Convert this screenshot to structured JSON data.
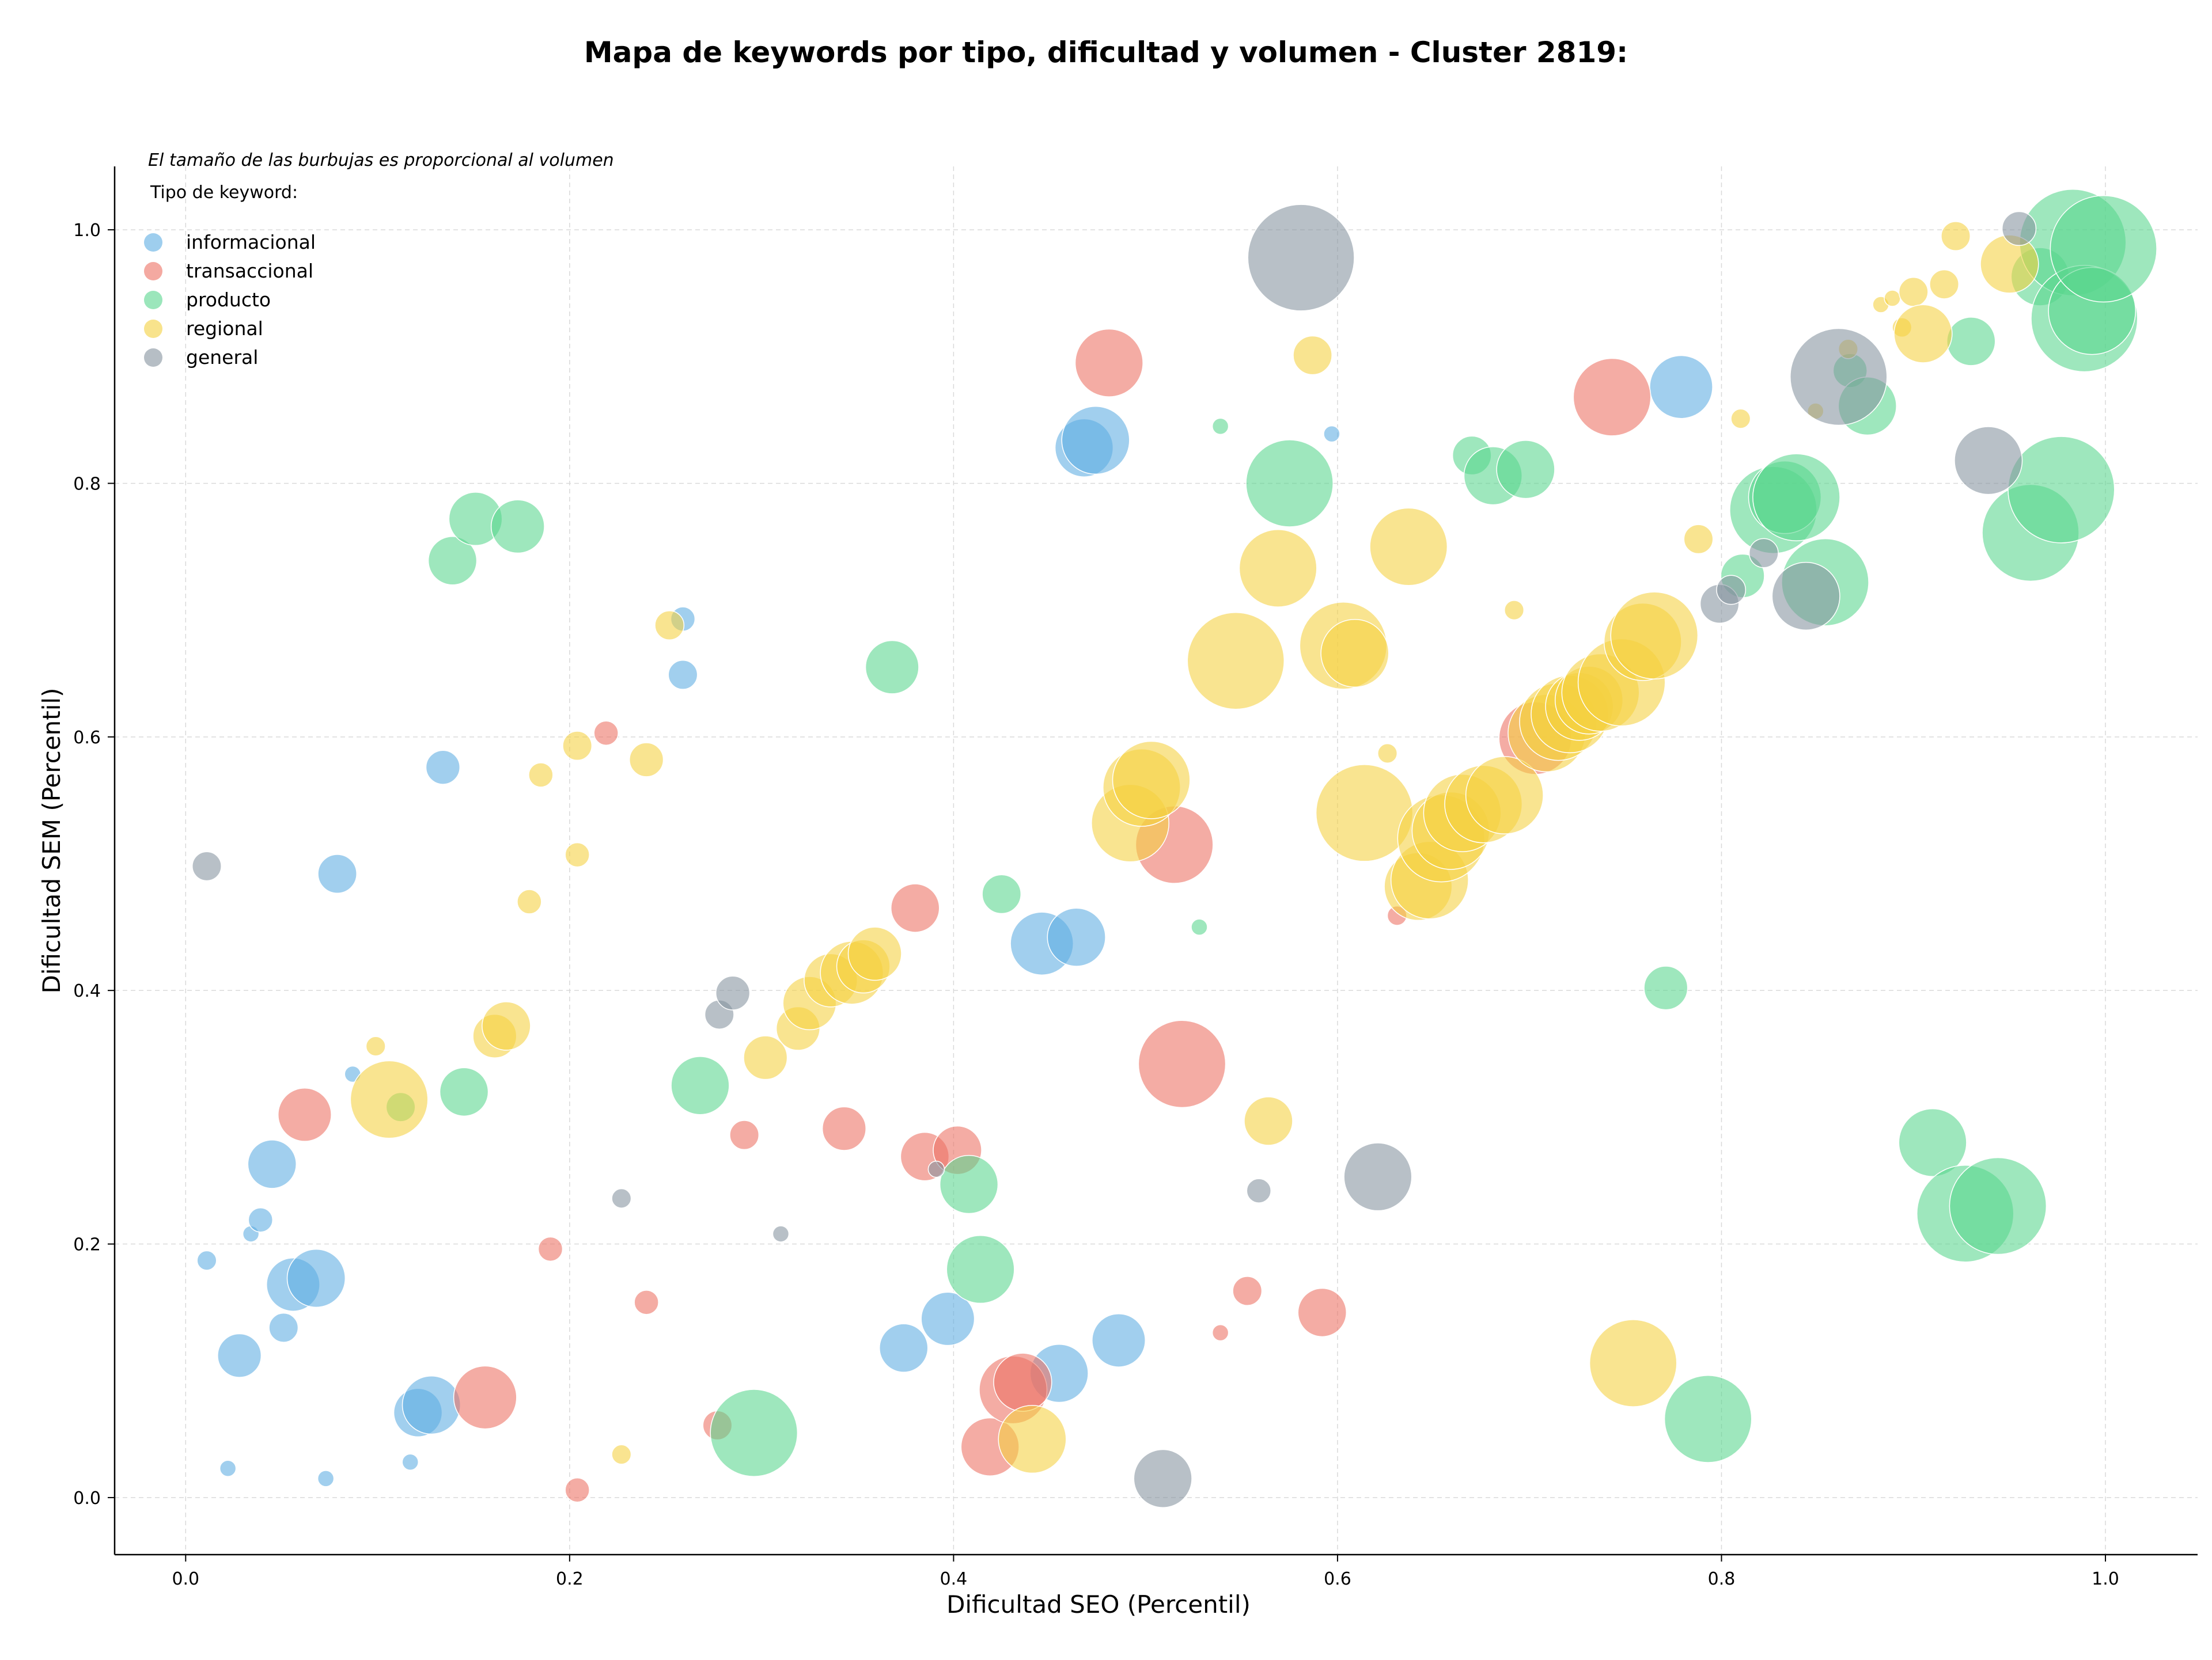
{
  "chart_data": {
    "type": "scatter",
    "title": "Mapa de keywords por tipo, dificultad y volumen - Cluster 2819:",
    "xlabel": "Dificultad SEO (Percentil)",
    "ylabel": "Dificultad SEM (Percentil)",
    "xlim": [
      -0.037,
      1.048
    ],
    "ylim": [
      -0.045,
      1.05
    ],
    "xticks": [
      "0.0",
      "0.2",
      "0.4",
      "0.6",
      "0.8",
      "1.0"
    ],
    "yticks": [
      "0.0",
      "0.2",
      "0.4",
      "0.6",
      "0.8",
      "1.0"
    ],
    "grid": true,
    "annotation": "El tamaño de las burbujas es proporcional al volumen",
    "legend_title": "Tipo de keyword:",
    "legend_position": "top-left",
    "series": [
      {
        "name": "informacional",
        "color": "#5dade2",
        "points": [
          {
            "x": 0.011,
            "y": 0.187,
            "v": 4
          },
          {
            "x": 0.022,
            "y": 0.023,
            "v": 2
          },
          {
            "x": 0.028,
            "y": 0.112,
            "v": 9
          },
          {
            "x": 0.034,
            "y": 0.208,
            "v": 3
          },
          {
            "x": 0.039,
            "y": 0.219,
            "v": 5
          },
          {
            "x": 0.045,
            "y": 0.263,
            "v": 10
          },
          {
            "x": 0.051,
            "y": 0.134,
            "v": 6
          },
          {
            "x": 0.056,
            "y": 0.168,
            "v": 11
          },
          {
            "x": 0.068,
            "y": 0.173,
            "v": 12
          },
          {
            "x": 0.073,
            "y": 0.015,
            "v": 2
          },
          {
            "x": 0.079,
            "y": 0.492,
            "v": 8
          },
          {
            "x": 0.087,
            "y": 0.334,
            "v": 3
          },
          {
            "x": 0.117,
            "y": 0.028,
            "v": 3
          },
          {
            "x": 0.121,
            "y": 0.067,
            "v": 10
          },
          {
            "x": 0.128,
            "y": 0.073,
            "v": 12
          },
          {
            "x": 0.134,
            "y": 0.576,
            "v": 7
          },
          {
            "x": 0.259,
            "y": 0.693,
            "v": 5
          },
          {
            "x": 0.259,
            "y": 0.649,
            "v": 6
          },
          {
            "x": 0.374,
            "y": 0.118,
            "v": 10
          },
          {
            "x": 0.397,
            "y": 0.141,
            "v": 11
          },
          {
            "x": 0.446,
            "y": 0.437,
            "v": 13
          },
          {
            "x": 0.455,
            "y": 0.098,
            "v": 12
          },
          {
            "x": 0.464,
            "y": 0.442,
            "v": 12
          },
          {
            "x": 0.468,
            "y": 0.828,
            "v": 12
          },
          {
            "x": 0.474,
            "y": 0.834,
            "v": 14
          },
          {
            "x": 0.486,
            "y": 0.124,
            "v": 11
          },
          {
            "x": 0.597,
            "y": 0.839,
            "v": 3
          },
          {
            "x": 0.779,
            "y": 0.876,
            "v": 13
          }
        ]
      },
      {
        "name": "transaccional",
        "color": "#ec7063",
        "points": [
          {
            "x": 0.062,
            "y": 0.302,
            "v": 11
          },
          {
            "x": 0.156,
            "y": 0.079,
            "v": 13
          },
          {
            "x": 0.19,
            "y": 0.196,
            "v": 5
          },
          {
            "x": 0.204,
            "y": 0.006,
            "v": 5
          },
          {
            "x": 0.219,
            "y": 0.603,
            "v": 5
          },
          {
            "x": 0.24,
            "y": 0.154,
            "v": 5
          },
          {
            "x": 0.277,
            "y": 0.057,
            "v": 6
          },
          {
            "x": 0.291,
            "y": 0.286,
            "v": 6
          },
          {
            "x": 0.343,
            "y": 0.291,
            "v": 9
          },
          {
            "x": 0.38,
            "y": 0.465,
            "v": 10
          },
          {
            "x": 0.385,
            "y": 0.269,
            "v": 10
          },
          {
            "x": 0.402,
            "y": 0.274,
            "v": 10
          },
          {
            "x": 0.419,
            "y": 0.04,
            "v": 12
          },
          {
            "x": 0.431,
            "y": 0.085,
            "v": 14
          },
          {
            "x": 0.436,
            "y": 0.091,
            "v": 12
          },
          {
            "x": 0.481,
            "y": 0.895,
            "v": 14
          },
          {
            "x": 0.515,
            "y": 0.515,
            "v": 16
          },
          {
            "x": 0.519,
            "y": 0.342,
            "v": 18
          },
          {
            "x": 0.539,
            "y": 0.13,
            "v": 3
          },
          {
            "x": 0.553,
            "y": 0.163,
            "v": 6
          },
          {
            "x": 0.592,
            "y": 0.146,
            "v": 10
          },
          {
            "x": 0.631,
            "y": 0.459,
            "v": 4
          },
          {
            "x": 0.703,
            "y": 0.599,
            "v": 15
          },
          {
            "x": 0.743,
            "y": 0.868,
            "v": 16
          }
        ]
      },
      {
        "name": "producto",
        "color": "#58d68d",
        "points": [
          {
            "x": 0.112,
            "y": 0.308,
            "v": 6
          },
          {
            "x": 0.139,
            "y": 0.739,
            "v": 10
          },
          {
            "x": 0.145,
            "y": 0.32,
            "v": 10
          },
          {
            "x": 0.151,
            "y": 0.772,
            "v": 11
          },
          {
            "x": 0.173,
            "y": 0.766,
            "v": 11
          },
          {
            "x": 0.268,
            "y": 0.325,
            "v": 12
          },
          {
            "x": 0.296,
            "y": 0.051,
            "v": 18
          },
          {
            "x": 0.368,
            "y": 0.655,
            "v": 11
          },
          {
            "x": 0.408,
            "y": 0.247,
            "v": 12
          },
          {
            "x": 0.414,
            "y": 0.18,
            "v": 14
          },
          {
            "x": 0.425,
            "y": 0.476,
            "v": 8
          },
          {
            "x": 0.528,
            "y": 0.45,
            "v": 2
          },
          {
            "x": 0.539,
            "y": 0.845,
            "v": 3
          },
          {
            "x": 0.575,
            "y": 0.8,
            "v": 18
          },
          {
            "x": 0.67,
            "y": 0.822,
            "v": 8
          },
          {
            "x": 0.681,
            "y": 0.806,
            "v": 12
          },
          {
            "x": 0.698,
            "y": 0.811,
            "v": 12
          },
          {
            "x": 0.771,
            "y": 0.402,
            "v": 9
          },
          {
            "x": 0.793,
            "y": 0.062,
            "v": 18
          },
          {
            "x": 0.811,
            "y": 0.727,
            "v": 9
          },
          {
            "x": 0.827,
            "y": 0.779,
            "v": 18
          },
          {
            "x": 0.833,
            "y": 0.789,
            "v": 15
          },
          {
            "x": 0.839,
            "y": 0.789,
            "v": 18
          },
          {
            "x": 0.854,
            "y": 0.722,
            "v": 18
          },
          {
            "x": 0.867,
            "y": 0.889,
            "v": 7
          },
          {
            "x": 0.876,
            "y": 0.861,
            "v": 12
          },
          {
            "x": 0.91,
            "y": 0.28,
            "v": 14
          },
          {
            "x": 0.927,
            "y": 0.224,
            "v": 20
          },
          {
            "x": 0.93,
            "y": 0.912,
            "v": 10
          },
          {
            "x": 0.944,
            "y": 0.23,
            "v": 20
          },
          {
            "x": 0.961,
            "y": 0.761,
            "v": 20
          },
          {
            "x": 0.966,
            "y": 0.963,
            "v": 12
          },
          {
            "x": 0.977,
            "y": 0.795,
            "v": 22
          },
          {
            "x": 0.983,
            "y": 0.99,
            "v": 22
          },
          {
            "x": 0.989,
            "y": 0.93,
            "v": 22
          },
          {
            "x": 0.993,
            "y": 0.936,
            "v": 18
          },
          {
            "x": 0.999,
            "y": 0.985,
            "v": 22
          }
        ]
      },
      {
        "name": "regional",
        "color": "#f4d03f",
        "points": [
          {
            "x": 0.099,
            "y": 0.356,
            "v": 4
          },
          {
            "x": 0.106,
            "y": 0.314,
            "v": 16
          },
          {
            "x": 0.161,
            "y": 0.364,
            "v": 9
          },
          {
            "x": 0.167,
            "y": 0.372,
            "v": 10
          },
          {
            "x": 0.179,
            "y": 0.47,
            "v": 5
          },
          {
            "x": 0.185,
            "y": 0.57,
            "v": 5
          },
          {
            "x": 0.204,
            "y": 0.593,
            "v": 6
          },
          {
            "x": 0.204,
            "y": 0.507,
            "v": 5
          },
          {
            "x": 0.227,
            "y": 0.034,
            "v": 4
          },
          {
            "x": 0.24,
            "y": 0.582,
            "v": 7
          },
          {
            "x": 0.252,
            "y": 0.688,
            "v": 6
          },
          {
            "x": 0.302,
            "y": 0.347,
            "v": 9
          },
          {
            "x": 0.319,
            "y": 0.37,
            "v": 9
          },
          {
            "x": 0.325,
            "y": 0.39,
            "v": 11
          },
          {
            "x": 0.336,
            "y": 0.408,
            "v": 11
          },
          {
            "x": 0.347,
            "y": 0.414,
            "v": 13
          },
          {
            "x": 0.353,
            "y": 0.419,
            "v": 11
          },
          {
            "x": 0.359,
            "y": 0.429,
            "v": 11
          },
          {
            "x": 0.441,
            "y": 0.046,
            "v": 14
          },
          {
            "x": 0.492,
            "y": 0.532,
            "v": 16
          },
          {
            "x": 0.498,
            "y": 0.56,
            "v": 16
          },
          {
            "x": 0.503,
            "y": 0.566,
            "v": 16
          },
          {
            "x": 0.547,
            "y": 0.66,
            "v": 20
          },
          {
            "x": 0.564,
            "y": 0.297,
            "v": 10
          },
          {
            "x": 0.569,
            "y": 0.733,
            "v": 16
          },
          {
            "x": 0.587,
            "y": 0.901,
            "v": 8
          },
          {
            "x": 0.603,
            "y": 0.672,
            "v": 18
          },
          {
            "x": 0.609,
            "y": 0.666,
            "v": 14
          },
          {
            "x": 0.614,
            "y": 0.54,
            "v": 20
          },
          {
            "x": 0.626,
            "y": 0.587,
            "v": 4
          },
          {
            "x": 0.637,
            "y": 0.75,
            "v": 16
          },
          {
            "x": 0.642,
            "y": 0.482,
            "v": 14
          },
          {
            "x": 0.648,
            "y": 0.487,
            "v": 16
          },
          {
            "x": 0.654,
            "y": 0.52,
            "v": 18
          },
          {
            "x": 0.659,
            "y": 0.526,
            "v": 16
          },
          {
            "x": 0.665,
            "y": 0.54,
            "v": 16
          },
          {
            "x": 0.676,
            "y": 0.547,
            "v": 16
          },
          {
            "x": 0.687,
            "y": 0.554,
            "v": 16
          },
          {
            "x": 0.692,
            "y": 0.7,
            "v": 4
          },
          {
            "x": 0.709,
            "y": 0.603,
            "v": 16
          },
          {
            "x": 0.715,
            "y": 0.612,
            "v": 16
          },
          {
            "x": 0.721,
            "y": 0.618,
            "v": 16
          },
          {
            "x": 0.726,
            "y": 0.624,
            "v": 14
          },
          {
            "x": 0.731,
            "y": 0.629,
            "v": 14
          },
          {
            "x": 0.737,
            "y": 0.635,
            "v": 16
          },
          {
            "x": 0.748,
            "y": 0.643,
            "v": 18
          },
          {
            "x": 0.754,
            "y": 0.106,
            "v": 18
          },
          {
            "x": 0.759,
            "y": 0.675,
            "v": 16
          },
          {
            "x": 0.765,
            "y": 0.68,
            "v": 18
          },
          {
            "x": 0.788,
            "y": 0.756,
            "v": 6
          },
          {
            "x": 0.81,
            "y": 0.851,
            "v": 4
          },
          {
            "x": 0.849,
            "y": 0.857,
            "v": 3
          },
          {
            "x": 0.866,
            "y": 0.906,
            "v": 4
          },
          {
            "x": 0.883,
            "y": 0.941,
            "v": 3
          },
          {
            "x": 0.889,
            "y": 0.946,
            "v": 3
          },
          {
            "x": 0.894,
            "y": 0.923,
            "v": 4
          },
          {
            "x": 0.9,
            "y": 0.951,
            "v": 6
          },
          {
            "x": 0.905,
            "y": 0.918,
            "v": 12
          },
          {
            "x": 0.916,
            "y": 0.957,
            "v": 6
          },
          {
            "x": 0.922,
            "y": 0.995,
            "v": 6
          },
          {
            "x": 0.95,
            "y": 0.973,
            "v": 12
          }
        ]
      },
      {
        "name": "general",
        "color": "#85929e",
        "points": [
          {
            "x": 0.011,
            "y": 0.498,
            "v": 6
          },
          {
            "x": 0.227,
            "y": 0.236,
            "v": 4
          },
          {
            "x": 0.278,
            "y": 0.381,
            "v": 6
          },
          {
            "x": 0.285,
            "y": 0.398,
            "v": 7
          },
          {
            "x": 0.31,
            "y": 0.208,
            "v": 3
          },
          {
            "x": 0.391,
            "y": 0.259,
            "v": 3
          },
          {
            "x": 0.509,
            "y": 0.015,
            "v": 12
          },
          {
            "x": 0.559,
            "y": 0.242,
            "v": 5
          },
          {
            "x": 0.581,
            "y": 0.978,
            "v": 22
          },
          {
            "x": 0.621,
            "y": 0.253,
            "v": 14
          },
          {
            "x": 0.799,
            "y": 0.705,
            "v": 8
          },
          {
            "x": 0.805,
            "y": 0.716,
            "v": 6
          },
          {
            "x": 0.822,
            "y": 0.745,
            "v": 6
          },
          {
            "x": 0.844,
            "y": 0.711,
            "v": 14
          },
          {
            "x": 0.861,
            "y": 0.884,
            "v": 20
          },
          {
            "x": 0.939,
            "y": 0.818,
            "v": 14
          },
          {
            "x": 0.955,
            "y": 1.001,
            "v": 7
          }
        ]
      }
    ]
  }
}
